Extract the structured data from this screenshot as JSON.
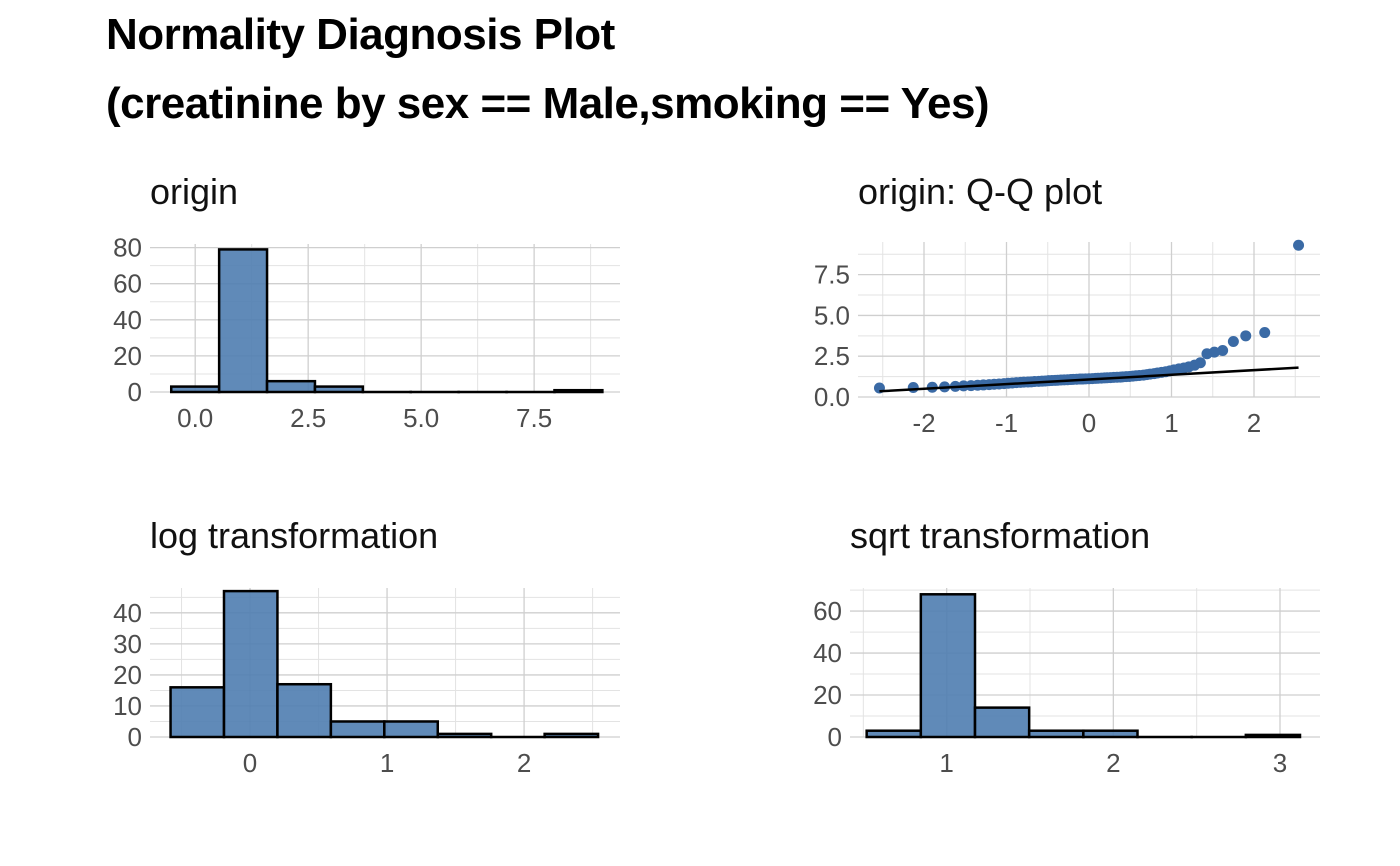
{
  "title": {
    "line1": "Normality Diagnosis Plot",
    "line2": "(creatinine by sex == Male,smoking == Yes)"
  },
  "colors": {
    "bar_fill": "#4f7db0",
    "point": "#3a6aa5",
    "outline": "#000000"
  },
  "chart_data": [
    {
      "id": "origin",
      "type": "bar",
      "title": "origin",
      "bins": [
        {
          "x0": -0.53,
          "x1": 0.53,
          "count": 3
        },
        {
          "x0": 0.53,
          "x1": 1.59,
          "count": 79
        },
        {
          "x0": 1.59,
          "x1": 2.65,
          "count": 6
        },
        {
          "x0": 2.65,
          "x1": 3.71,
          "count": 3
        },
        {
          "x0": 3.71,
          "x1": 4.77,
          "count": 0
        },
        {
          "x0": 4.77,
          "x1": 5.83,
          "count": 0
        },
        {
          "x0": 5.83,
          "x1": 6.89,
          "count": 0
        },
        {
          "x0": 6.89,
          "x1": 7.95,
          "count": 0
        },
        {
          "x0": 7.95,
          "x1": 9.01,
          "count": 1
        }
      ],
      "xlim": [
        -1.0,
        9.4
      ],
      "ylim": [
        0,
        82
      ],
      "xticks": [
        "0.0",
        "2.5",
        "5.0",
        "7.5"
      ],
      "xtick_values": [
        0,
        2.5,
        5,
        7.5
      ],
      "xminor": [
        -1.25,
        1.25,
        3.75,
        6.25,
        8.75
      ],
      "yticks": [
        "0",
        "20",
        "40",
        "60",
        "80"
      ],
      "ytick_values": [
        0,
        20,
        40,
        60,
        80
      ],
      "yminor": [
        10,
        30,
        50,
        70
      ],
      "grid": true
    },
    {
      "id": "qq",
      "type": "scatter",
      "title": "origin: Q-Q plot",
      "points_x": [
        -2.54,
        -2.13,
        -1.9,
        -1.75,
        -1.62,
        -1.52,
        -1.43,
        -1.35,
        -1.28,
        -1.21,
        -1.15,
        -1.09,
        -1.03,
        -0.98,
        -0.93,
        -0.88,
        -0.83,
        -0.79,
        -0.74,
        -0.7,
        -0.66,
        -0.61,
        -0.57,
        -0.53,
        -0.49,
        -0.45,
        -0.41,
        -0.38,
        -0.34,
        -0.3,
        -0.26,
        -0.22,
        -0.19,
        -0.15,
        -0.11,
        -0.08,
        -0.04,
        0.0,
        0.04,
        0.08,
        0.11,
        0.15,
        0.19,
        0.22,
        0.26,
        0.3,
        0.34,
        0.38,
        0.41,
        0.45,
        0.49,
        0.53,
        0.57,
        0.61,
        0.66,
        0.7,
        0.74,
        0.79,
        0.83,
        0.88,
        0.93,
        0.98,
        1.03,
        1.09,
        1.15,
        1.21,
        1.28,
        1.35,
        1.43,
        1.52,
        1.62,
        1.75,
        1.9,
        2.13,
        2.54
      ],
      "points_y": [
        0.55,
        0.58,
        0.6,
        0.62,
        0.65,
        0.68,
        0.7,
        0.72,
        0.74,
        0.76,
        0.78,
        0.8,
        0.82,
        0.84,
        0.86,
        0.88,
        0.9,
        0.91,
        0.92,
        0.93,
        0.95,
        0.96,
        0.97,
        0.98,
        1.0,
        1.01,
        1.02,
        1.03,
        1.04,
        1.05,
        1.06,
        1.07,
        1.08,
        1.09,
        1.1,
        1.1,
        1.11,
        1.12,
        1.13,
        1.14,
        1.15,
        1.16,
        1.17,
        1.18,
        1.19,
        1.2,
        1.21,
        1.22,
        1.23,
        1.25,
        1.26,
        1.28,
        1.3,
        1.32,
        1.34,
        1.37,
        1.4,
        1.43,
        1.47,
        1.51,
        1.55,
        1.6,
        1.66,
        1.72,
        1.78,
        1.85,
        1.95,
        2.1,
        2.65,
        2.75,
        2.85,
        3.4,
        3.75,
        3.95,
        9.3
      ],
      "line": {
        "x1": -2.54,
        "y1": 0.35,
        "x2": 2.54,
        "y2": 1.8
      },
      "xlim": [
        -2.8,
        2.8
      ],
      "ylim": [
        0,
        9.5
      ],
      "xticks": [
        "-2",
        "-1",
        "0",
        "1",
        "2"
      ],
      "xtick_values": [
        -2,
        -1,
        0,
        1,
        2
      ],
      "xminor": [
        -2.5,
        -1.5,
        -0.5,
        0.5,
        1.5,
        2.5
      ],
      "yticks": [
        "0.0",
        "2.5",
        "5.0",
        "7.5"
      ],
      "ytick_values": [
        0,
        2.5,
        5,
        7.5
      ],
      "yminor": [
        1.25,
        3.75,
        6.25,
        8.75
      ],
      "grid": true
    },
    {
      "id": "log",
      "type": "bar",
      "title": "log transformation",
      "bins": [
        {
          "x0": -0.58,
          "x1": -0.19,
          "count": 16
        },
        {
          "x0": -0.19,
          "x1": 0.2,
          "count": 47
        },
        {
          "x0": 0.2,
          "x1": 0.59,
          "count": 17
        },
        {
          "x0": 0.59,
          "x1": 0.98,
          "count": 5
        },
        {
          "x0": 0.98,
          "x1": 1.37,
          "count": 5
        },
        {
          "x0": 1.37,
          "x1": 1.76,
          "count": 1
        },
        {
          "x0": 1.76,
          "x1": 2.15,
          "count": 0
        },
        {
          "x0": 2.15,
          "x1": 2.54,
          "count": 1
        }
      ],
      "xlim": [
        -0.73,
        2.7
      ],
      "ylim": [
        0,
        48
      ],
      "xticks": [
        "0",
        "1",
        "2"
      ],
      "xtick_values": [
        0,
        1,
        2
      ],
      "xminor": [
        -0.5,
        0.5,
        1.5,
        2.5
      ],
      "yticks": [
        "0",
        "10",
        "20",
        "30",
        "40"
      ],
      "ytick_values": [
        0,
        10,
        20,
        30,
        40
      ],
      "yminor": [
        5,
        15,
        25,
        35,
        45
      ],
      "grid": true
    },
    {
      "id": "sqrt",
      "type": "bar",
      "title": "sqrt transformation",
      "bins": [
        {
          "x0": 0.52,
          "x1": 0.845,
          "count": 3
        },
        {
          "x0": 0.845,
          "x1": 1.17,
          "count": 68
        },
        {
          "x0": 1.17,
          "x1": 1.495,
          "count": 14
        },
        {
          "x0": 1.495,
          "x1": 1.82,
          "count": 3
        },
        {
          "x0": 1.82,
          "x1": 2.145,
          "count": 3
        },
        {
          "x0": 2.145,
          "x1": 2.47,
          "count": 0
        },
        {
          "x0": 2.47,
          "x1": 2.795,
          "count": 0
        },
        {
          "x0": 2.795,
          "x1": 3.12,
          "count": 1
        }
      ],
      "xlim": [
        0.42,
        3.24
      ],
      "ylim": [
        0,
        71
      ],
      "xticks": [
        "1",
        "2",
        "3"
      ],
      "xtick_values": [
        1,
        2,
        3
      ],
      "xminor": [
        0.5,
        1.5,
        2.5
      ],
      "yticks": [
        "0",
        "20",
        "40",
        "60"
      ],
      "ytick_values": [
        0,
        20,
        40,
        60
      ],
      "yminor": [
        10,
        30,
        50,
        70
      ],
      "grid": true
    }
  ]
}
